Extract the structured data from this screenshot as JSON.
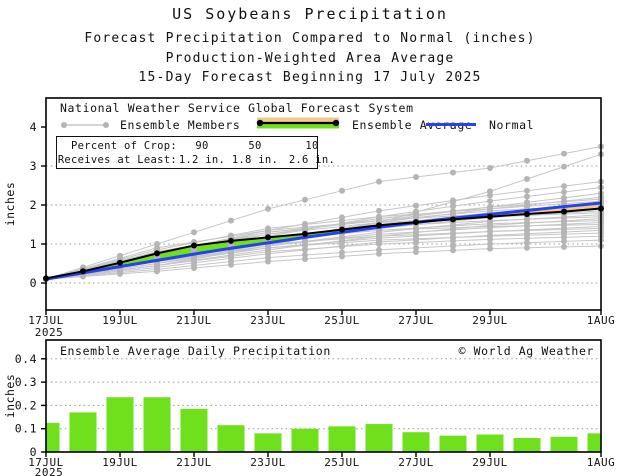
{
  "titles": {
    "line1": "US Soybeans Precipitation",
    "line2": "Forecast Precipitation Compared to Normal (inches)",
    "line3": "Production-Weighted Area Average",
    "line4": "15-Day Forecast Beginning 17 July 2025"
  },
  "legend": {
    "source": "National Weather Service Global Forecast System",
    "members_label": "Ensemble Members",
    "average_label": "Ensemble Average",
    "normal_label": "Normal"
  },
  "crop_box": {
    "row1_label": "Percent of Crop:",
    "row1_values": [
      "90",
      "50",
      "10"
    ],
    "row2_label": "Receives at Least:",
    "row2_values": [
      "1.2 in.",
      "1.8 in.",
      "2.6 in."
    ]
  },
  "bottom_header": {
    "title": "Ensemble Average Daily Precipitation",
    "credit": "© World Ag Weather"
  },
  "colors": {
    "background": "#ffffff",
    "text": "#111111",
    "frame": "#000000",
    "grid": "#9a9a9a",
    "member_line": "#c6c6c6",
    "member_dot": "#b5b5b5",
    "average_black": "#000000",
    "normal_blue": "#2442ee",
    "band_green": "#6fe01c",
    "band_tan": "#f4c98c",
    "bar_green": "#6fe01c"
  },
  "chart_data": [
    {
      "type": "line",
      "title": "Forecast Precipitation Compared to Normal (inches)",
      "xlabel": "",
      "ylabel": "inches",
      "n_days": 16,
      "x_start_label": "17JUL",
      "x_start_year": "2025",
      "x_tick_labels": [
        "17JUL",
        "19JUL",
        "21JUL",
        "23JUL",
        "25JUL",
        "27JUL",
        "29JUL",
        "1AUG"
      ],
      "x_tick_days": [
        0,
        2,
        4,
        6,
        8,
        10,
        12,
        15
      ],
      "ylim": [
        -0.7,
        4.75
      ],
      "yticks": [
        0,
        1,
        2,
        3,
        4
      ],
      "grid_yticks": [
        0,
        1,
        2,
        3
      ],
      "band_rule": "green fill where Ensemble Average > Normal, tan fill where Ensemble Average < Normal",
      "series": [
        {
          "name": "Ensemble Average",
          "color_key": "average_black",
          "values": [
            0.12,
            0.3,
            0.52,
            0.76,
            0.96,
            1.08,
            1.17,
            1.26,
            1.37,
            1.48,
            1.56,
            1.63,
            1.7,
            1.77,
            1.83,
            1.91
          ]
        },
        {
          "name": "Normal",
          "color_key": "normal_blue",
          "values": [
            0.1,
            0.26,
            0.42,
            0.58,
            0.74,
            0.89,
            1.03,
            1.17,
            1.3,
            1.43,
            1.55,
            1.66,
            1.76,
            1.86,
            1.96,
            2.05
          ]
        }
      ],
      "ensemble_members": {
        "control_days": [
          0,
          3,
          6,
          9,
          12,
          15
        ],
        "members": [
          [
            0.1,
            1.0,
            1.9,
            2.6,
            2.95,
            3.5
          ],
          [
            0.1,
            0.45,
            0.95,
            1.55,
            2.35,
            3.3
          ],
          [
            0.1,
            0.75,
            1.35,
            1.85,
            2.25,
            2.6
          ],
          [
            0.1,
            0.6,
            1.2,
            1.7,
            2.1,
            2.45
          ],
          [
            0.1,
            0.8,
            1.3,
            1.6,
            1.95,
            2.3
          ],
          [
            0.1,
            0.55,
            1.1,
            1.55,
            1.9,
            2.2
          ],
          [
            0.1,
            0.7,
            1.25,
            1.65,
            1.95,
            2.15
          ],
          [
            0.1,
            0.85,
            1.4,
            1.7,
            1.9,
            2.1
          ],
          [
            0.1,
            0.65,
            1.15,
            1.5,
            1.8,
            2.05
          ],
          [
            0.1,
            0.75,
            1.3,
            1.6,
            1.85,
            2.0
          ],
          [
            0.1,
            0.5,
            1.0,
            1.45,
            1.75,
            1.95
          ],
          [
            0.1,
            0.9,
            1.35,
            1.6,
            1.78,
            1.9
          ],
          [
            0.1,
            0.6,
            1.05,
            1.4,
            1.68,
            1.85
          ],
          [
            0.1,
            0.8,
            1.25,
            1.55,
            1.7,
            1.8
          ],
          [
            0.1,
            0.55,
            0.95,
            1.3,
            1.58,
            1.75
          ],
          [
            0.1,
            0.7,
            1.15,
            1.45,
            1.6,
            1.7
          ],
          [
            0.1,
            0.45,
            0.85,
            1.2,
            1.48,
            1.65
          ],
          [
            0.1,
            0.65,
            1.1,
            1.35,
            1.52,
            1.6
          ],
          [
            0.1,
            0.55,
            0.95,
            1.25,
            1.42,
            1.55
          ],
          [
            0.1,
            0.75,
            1.15,
            1.35,
            1.45,
            1.5
          ],
          [
            0.1,
            0.5,
            0.9,
            1.15,
            1.32,
            1.45
          ],
          [
            0.1,
            0.6,
            1.0,
            1.2,
            1.32,
            1.4
          ],
          [
            0.1,
            0.4,
            0.75,
            1.05,
            1.22,
            1.35
          ],
          [
            0.1,
            0.55,
            0.9,
            1.1,
            1.2,
            1.28
          ],
          [
            0.1,
            0.45,
            0.8,
            1.0,
            1.12,
            1.2
          ],
          [
            0.1,
            0.35,
            0.65,
            0.85,
            1.0,
            1.1
          ],
          [
            0.1,
            0.3,
            0.55,
            0.75,
            0.88,
            0.95
          ]
        ]
      }
    },
    {
      "type": "bar",
      "title": "Ensemble Average Daily Precipitation",
      "xlabel": "",
      "ylabel": "inches",
      "x_tick_labels": [
        "17JUL",
        "19JUL",
        "21JUL",
        "23JUL",
        "25JUL",
        "27JUL",
        "29JUL",
        "1AUG"
      ],
      "x_tick_days": [
        0,
        2,
        4,
        6,
        8,
        10,
        12,
        15
      ],
      "x_start_year": "2025",
      "ylim": [
        0,
        0.48
      ],
      "yticks": [
        0,
        0.1,
        0.2,
        0.3,
        0.4
      ],
      "values": [
        0.125,
        0.17,
        0.235,
        0.235,
        0.185,
        0.115,
        0.08,
        0.1,
        0.11,
        0.12,
        0.085,
        0.07,
        0.075,
        0.06,
        0.065,
        0.08
      ]
    }
  ]
}
